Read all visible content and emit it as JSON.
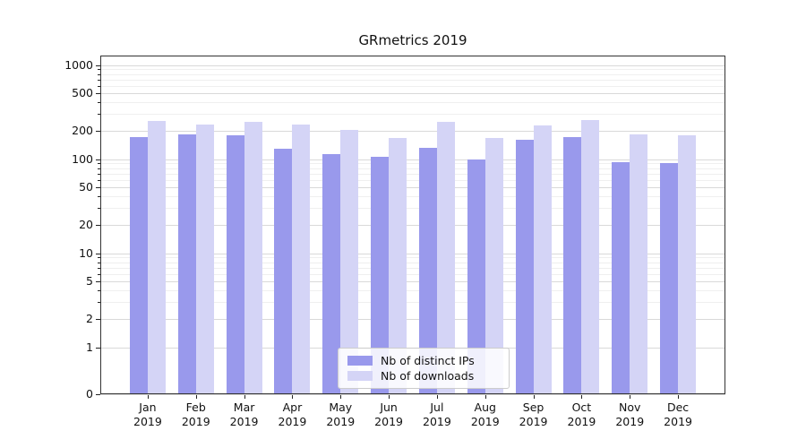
{
  "chart_data": {
    "type": "bar",
    "title": "GRmetrics 2019",
    "categories": [
      "Jan",
      "Feb",
      "Mar",
      "Apr",
      "May",
      "Jun",
      "Jul",
      "Aug",
      "Sep",
      "Oct",
      "Nov",
      "Dec"
    ],
    "year_label": "2019",
    "series": [
      {
        "name": "Nb of distinct IPs",
        "color": "#9999ec",
        "values": [
          170,
          183,
          178,
          130,
          113,
          106,
          132,
          100,
          160,
          172,
          92,
          91
        ]
      },
      {
        "name": "Nb of downloads",
        "color": "#d4d4f6",
        "values": [
          253,
          231,
          246,
          231,
          204,
          166,
          251,
          166,
          230,
          262,
          181,
          180
        ]
      }
    ],
    "yscale": "symlog",
    "yticks": [
      0,
      1,
      2,
      5,
      10,
      20,
      50,
      100,
      200,
      500,
      1000
    ],
    "ylim": [
      0,
      1260
    ],
    "grid": true,
    "legend_position": "lower center"
  }
}
